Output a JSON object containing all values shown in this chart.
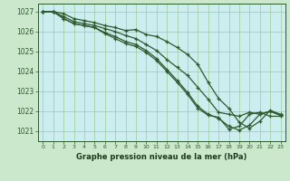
{
  "title": "Graphe pression niveau de la mer (hPa)",
  "bg_color": "#cce8cc",
  "plot_bg_color": "#cceeee",
  "line_color": "#2d5a2d",
  "grid_color": "#99cc99",
  "axis_label_color": "#1a3a1a",
  "xlim": [
    -0.5,
    23.5
  ],
  "ylim": [
    1020.5,
    1027.4
  ],
  "yticks": [
    1021,
    1022,
    1023,
    1024,
    1025,
    1026,
    1027
  ],
  "xticks": [
    0,
    1,
    2,
    3,
    4,
    5,
    6,
    7,
    8,
    9,
    10,
    11,
    12,
    13,
    14,
    15,
    16,
    17,
    18,
    19,
    20,
    21,
    22,
    23
  ],
  "series": [
    [
      1027.0,
      1027.0,
      1026.9,
      1026.65,
      1026.55,
      1026.45,
      1026.3,
      1026.2,
      1026.05,
      1026.1,
      1025.85,
      1025.75,
      1025.5,
      1025.2,
      1024.85,
      1024.35,
      1023.45,
      1022.65,
      1022.15,
      1021.45,
      1021.15,
      1021.5,
      1022.05,
      1021.85
    ],
    [
      1027.0,
      1027.0,
      1026.75,
      1026.5,
      1026.4,
      1026.3,
      1026.15,
      1026.0,
      1025.8,
      1025.65,
      1025.35,
      1025.05,
      1024.6,
      1024.2,
      1023.8,
      1023.2,
      1022.6,
      1021.95,
      1021.85,
      1021.75,
      1021.95,
      1021.85,
      1022.0,
      1021.8
    ],
    [
      1027.0,
      1027.0,
      1026.65,
      1026.4,
      1026.3,
      1026.2,
      1025.95,
      1025.75,
      1025.5,
      1025.35,
      1025.05,
      1024.65,
      1024.1,
      1023.55,
      1022.95,
      1022.25,
      1021.85,
      1021.65,
      1021.25,
      1021.05,
      1021.3,
      1021.85,
      1022.0,
      1021.8
    ],
    [
      1027.0,
      1027.0,
      1026.65,
      1026.4,
      1026.3,
      1026.2,
      1025.9,
      1025.65,
      1025.4,
      1025.25,
      1024.95,
      1024.55,
      1024.0,
      1023.45,
      1022.85,
      1022.15,
      1021.8,
      1021.7,
      1021.1,
      1021.25,
      1021.85,
      1021.95,
      1021.75,
      1021.75
    ]
  ]
}
